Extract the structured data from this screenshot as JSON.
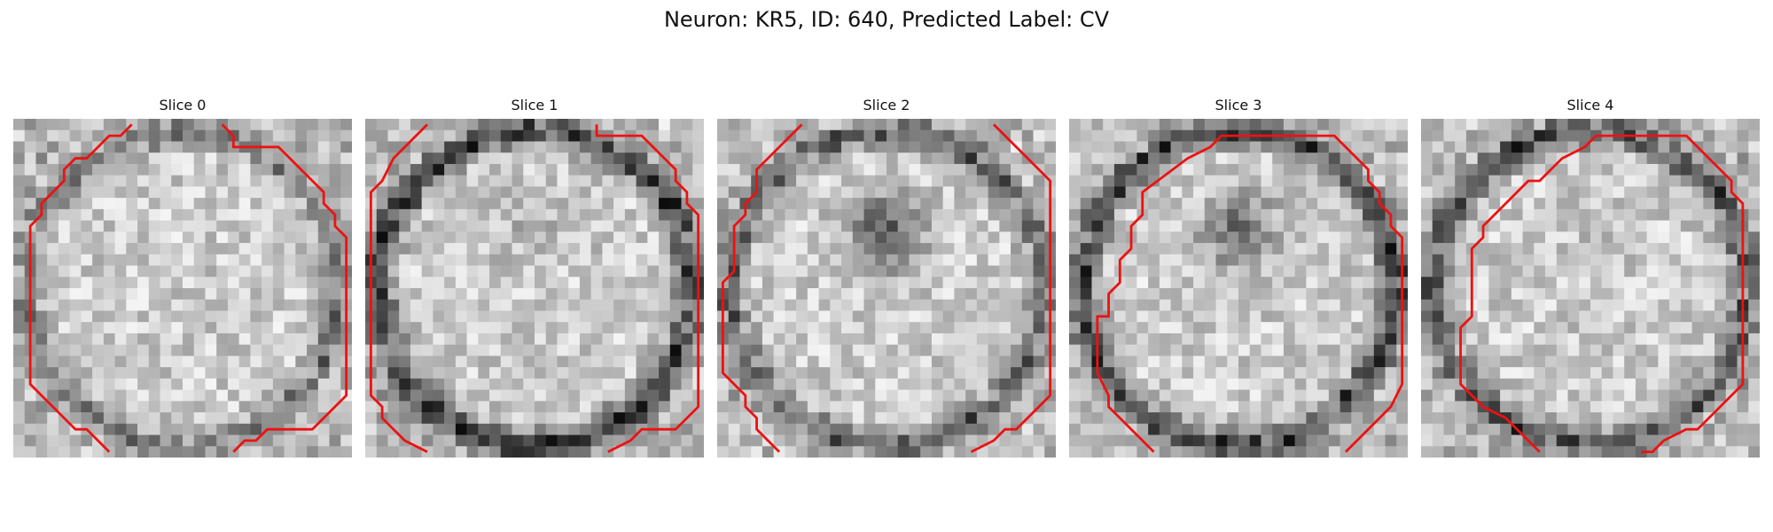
{
  "figure": {
    "title": "Neuron: KR5, ID: 640, Predicted Label: CV",
    "contour_color": "#ee1111",
    "colormap": "gray",
    "grid_size": 30,
    "panels": [
      {
        "label": "Slice 0",
        "seed": 11,
        "ring_dark": 0.3,
        "center_dark": 0.0,
        "contour": [
          [
            10.5,
            0.5
          ],
          [
            9.5,
            1.5
          ],
          [
            8.5,
            1.5
          ],
          [
            7.5,
            2.5
          ],
          [
            6.5,
            3.5
          ],
          [
            5.5,
            3.5
          ],
          [
            4.5,
            4.5
          ],
          [
            4.5,
            5.5
          ],
          [
            3.5,
            6.5
          ],
          [
            2.5,
            7.5
          ],
          [
            2.5,
            8.5
          ],
          [
            1.5,
            9.5
          ],
          [
            1.5,
            23.5
          ],
          [
            3.5,
            25.5
          ],
          [
            4.5,
            26.5
          ],
          [
            5.5,
            27.5
          ],
          [
            6.5,
            27.5
          ],
          [
            8.5,
            29.5
          ]
        ],
        "contour2": [
          [
            18.5,
            0.5
          ],
          [
            19.5,
            1.5
          ],
          [
            19.5,
            2.5
          ],
          [
            23.5,
            2.5
          ],
          [
            26.5,
            5.5
          ],
          [
            27.5,
            6.5
          ],
          [
            27.5,
            7.5
          ],
          [
            28.5,
            8.5
          ],
          [
            28.5,
            9.5
          ],
          [
            29.5,
            10.5
          ],
          [
            29.5,
            24.5
          ],
          [
            26.5,
            27.5
          ],
          [
            22.5,
            27.5
          ],
          [
            21.5,
            28.5
          ],
          [
            20.5,
            28.5
          ],
          [
            19.5,
            29.5
          ]
        ]
      },
      {
        "label": "Slice 1",
        "seed": 23,
        "ring_dark": 0.55,
        "center_dark": 0.1,
        "contour": [
          [
            5.5,
            0.5
          ],
          [
            3.5,
            2.5
          ],
          [
            2.5,
            3.5
          ],
          [
            1.5,
            5.5
          ],
          [
            0.5,
            6.5
          ],
          [
            0.5,
            21.5
          ],
          [
            0.5,
            22.5
          ],
          [
            0.5,
            24.5
          ],
          [
            1.5,
            25.5
          ],
          [
            1.5,
            26.5
          ],
          [
            3.5,
            28.5
          ],
          [
            5.5,
            29.5
          ]
        ],
        "contour2": [
          [
            20.5,
            0.5
          ],
          [
            20.5,
            1.5
          ],
          [
            24.5,
            1.5
          ],
          [
            26.5,
            3.5
          ],
          [
            27.5,
            4.5
          ],
          [
            27.5,
            5.5
          ],
          [
            28.5,
            6.5
          ],
          [
            28.5,
            7.5
          ],
          [
            29.5,
            8.5
          ],
          [
            29.5,
            25.5
          ],
          [
            27.5,
            27.5
          ],
          [
            24.5,
            27.5
          ],
          [
            23.5,
            28.5
          ],
          [
            21.5,
            29.5
          ]
        ]
      },
      {
        "label": "Slice 2",
        "seed": 37,
        "ring_dark": 0.4,
        "center_dark": 0.45,
        "contour": [
          [
            7.5,
            0.5
          ],
          [
            4.5,
            3.5
          ],
          [
            3.5,
            4.5
          ],
          [
            3.5,
            6.5
          ],
          [
            2.5,
            7.5
          ],
          [
            2.5,
            8.5
          ],
          [
            1.5,
            9.5
          ],
          [
            1.5,
            13.5
          ],
          [
            0.5,
            14.5
          ],
          [
            0.5,
            22.5
          ],
          [
            2.5,
            24.5
          ],
          [
            2.5,
            25.5
          ],
          [
            3.5,
            26.5
          ],
          [
            3.5,
            27.5
          ],
          [
            5.5,
            29.5
          ]
        ],
        "contour2": [
          [
            24.5,
            0.5
          ],
          [
            28.5,
            4.5
          ],
          [
            29.5,
            5.5
          ],
          [
            29.5,
            24.5
          ],
          [
            28.5,
            25.5
          ],
          [
            26.5,
            27.5
          ],
          [
            25.5,
            27.5
          ],
          [
            24.5,
            28.5
          ],
          [
            22.5,
            29.5
          ]
        ]
      },
      {
        "label": "Slice 3",
        "seed": 53,
        "ring_dark": 0.5,
        "center_dark": 0.4,
        "contour": [
          [
            7.5,
            29.5
          ],
          [
            4.5,
            26.5
          ],
          [
            3.5,
            25.5
          ],
          [
            3.5,
            24.5
          ],
          [
            2.5,
            22.5
          ],
          [
            2.5,
            17.5
          ],
          [
            3.5,
            17.5
          ],
          [
            3.5,
            15.5
          ],
          [
            4.5,
            14.5
          ],
          [
            4.5,
            12.5
          ],
          [
            5.5,
            11.5
          ],
          [
            5.5,
            9.5
          ],
          [
            6.5,
            8.5
          ],
          [
            6.5,
            6.5
          ],
          [
            10.5,
            3.5
          ],
          [
            12.5,
            2.5
          ],
          [
            13.5,
            1.5
          ],
          [
            23.5,
            1.5
          ],
          [
            26.5,
            4.5
          ],
          [
            26.5,
            5.5
          ],
          [
            27.5,
            6.5
          ],
          [
            27.5,
            7.5
          ],
          [
            28.5,
            8.5
          ],
          [
            28.5,
            9.5
          ],
          [
            29.5,
            10.5
          ],
          [
            29.5,
            22.5
          ],
          [
            29.5,
            23.5
          ],
          [
            28.5,
            25.5
          ],
          [
            24.5,
            29.5
          ]
        ]
      },
      {
        "label": "Slice 4",
        "seed": 71,
        "ring_dark": 0.45,
        "center_dark": 0.05,
        "contour": [
          [
            10.5,
            29.5
          ],
          [
            7.5,
            26.5
          ],
          [
            5.5,
            25.5
          ],
          [
            3.5,
            23.5
          ],
          [
            3.5,
            18.5
          ],
          [
            4.5,
            17.5
          ],
          [
            4.5,
            11.5
          ],
          [
            5.5,
            10.5
          ],
          [
            5.5,
            9.5
          ],
          [
            8.5,
            6.5
          ],
          [
            9.5,
            5.5
          ],
          [
            10.5,
            5.5
          ],
          [
            12.5,
            3.5
          ],
          [
            14.5,
            2.5
          ],
          [
            15.5,
            1.5
          ],
          [
            23.5,
            1.5
          ],
          [
            27.5,
            5.5
          ],
          [
            27.5,
            6.5
          ],
          [
            28.5,
            7.5
          ],
          [
            28.5,
            23.5
          ],
          [
            27.5,
            24.5
          ],
          [
            24.5,
            27.5
          ],
          [
            23.5,
            27.5
          ],
          [
            21.5,
            28.5
          ],
          [
            20.5,
            29.5
          ],
          [
            19.5,
            29.5
          ]
        ]
      }
    ]
  }
}
